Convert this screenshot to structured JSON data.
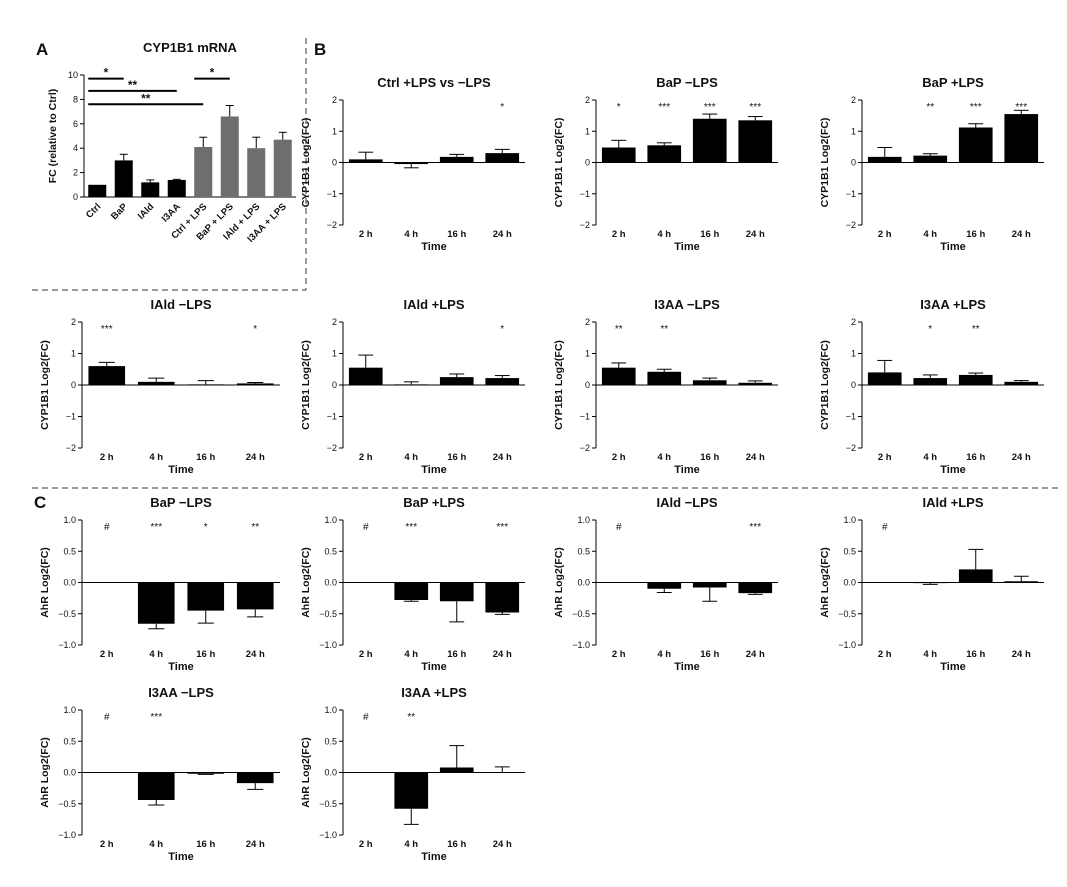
{
  "panel_labels": {
    "A": "A",
    "B": "B",
    "C": "C"
  },
  "chart_data": [
    {
      "id": "A",
      "type": "bar",
      "title": "CYP1B1 mRNA",
      "ylabel": "FC (relative to Ctrl)",
      "xlabel": "",
      "ylim": [
        0,
        10
      ],
      "yticks": [
        0,
        2,
        4,
        6,
        8,
        10
      ],
      "categories": [
        "Ctrl",
        "BaP",
        "IAld",
        "I3AA",
        "Ctrl + LPS",
        "BaP + LPS",
        "IAld + LPS",
        "I3AA + LPS"
      ],
      "values": [
        1.0,
        3.0,
        1.2,
        1.4,
        4.1,
        6.6,
        4.0,
        4.7
      ],
      "errors": [
        0.0,
        0.5,
        0.2,
        0.05,
        0.8,
        0.9,
        0.9,
        0.6
      ],
      "colors": [
        "#000000",
        "#000000",
        "#000000",
        "#000000",
        "#6e6e6e",
        "#6e6e6e",
        "#6e6e6e",
        "#6e6e6e"
      ],
      "brackets": [
        {
          "from": 0,
          "to": 1,
          "y": 9.7,
          "label": "*"
        },
        {
          "from": 0,
          "to": 3,
          "y": 8.7,
          "label": "**"
        },
        {
          "from": 0,
          "to": 4,
          "y": 7.6,
          "label": "**"
        },
        {
          "from": 4,
          "to": 5,
          "y": 9.7,
          "label": "*"
        }
      ]
    },
    {
      "id": "B1",
      "type": "bar",
      "title": "Ctrl +LPS vs −LPS",
      "ylabel": "CYP1B1 Log2(FC)",
      "xlabel": "Time",
      "ylim": [
        -2,
        2
      ],
      "yticks": [
        -2,
        -1,
        0,
        1,
        2
      ],
      "ytick_labels": [
        "−2",
        "−1",
        "0",
        "1",
        "2"
      ],
      "categories": [
        "2 h",
        "4 h",
        "16 h",
        "24 h"
      ],
      "values": [
        0.1,
        -0.05,
        0.18,
        0.3
      ],
      "errors": [
        0.23,
        0.12,
        0.08,
        0.12
      ],
      "annotations": [
        "",
        "",
        "",
        "*"
      ]
    },
    {
      "id": "B2",
      "type": "bar",
      "title": "BaP −LPS",
      "ylabel": "CYP1B1 Log2(FC)",
      "xlabel": "Time",
      "ylim": [
        -2,
        2
      ],
      "yticks": [
        -2,
        -1,
        0,
        1,
        2
      ],
      "ytick_labels": [
        "−2",
        "−1",
        "0",
        "1",
        "2"
      ],
      "categories": [
        "2 h",
        "4 h",
        "16 h",
        "24 h"
      ],
      "values": [
        0.48,
        0.55,
        1.4,
        1.35
      ],
      "errors": [
        0.23,
        0.08,
        0.15,
        0.12
      ],
      "annotations": [
        "*",
        "***",
        "***",
        "***"
      ]
    },
    {
      "id": "B3",
      "type": "bar",
      "title": "BaP +LPS",
      "ylabel": "CYP1B1 Log2(FC)",
      "xlabel": "Time",
      "ylim": [
        -2,
        2
      ],
      "yticks": [
        -2,
        -1,
        0,
        1,
        2
      ],
      "ytick_labels": [
        "−2",
        "−1",
        "0",
        "1",
        "2"
      ],
      "categories": [
        "2 h",
        "4 h",
        "16 h",
        "24 h"
      ],
      "values": [
        0.18,
        0.22,
        1.12,
        1.55
      ],
      "errors": [
        0.3,
        0.06,
        0.12,
        0.12
      ],
      "annotations": [
        "",
        "**",
        "***",
        "***"
      ]
    },
    {
      "id": "B4",
      "type": "bar",
      "title": "IAld −LPS",
      "ylabel": "CYP1B1 Log2(FC)",
      "xlabel": "Time",
      "ylim": [
        -2,
        2
      ],
      "yticks": [
        -2,
        -1,
        0,
        1,
        2
      ],
      "ytick_labels": [
        "−2",
        "−1",
        "0",
        "1",
        "2"
      ],
      "categories": [
        "2 h",
        "4 h",
        "16 h",
        "24 h"
      ],
      "values": [
        0.6,
        0.1,
        0.02,
        0.05
      ],
      "errors": [
        0.12,
        0.12,
        0.12,
        0.03
      ],
      "annotations": [
        "***",
        "",
        "",
        "*"
      ]
    },
    {
      "id": "B5",
      "type": "bar",
      "title": "IAld +LPS",
      "ylabel": "CYP1B1 Log2(FC)",
      "xlabel": "Time",
      "ylim": [
        -2,
        2
      ],
      "yticks": [
        -2,
        -1,
        0,
        1,
        2
      ],
      "ytick_labels": [
        "−2",
        "−1",
        "0",
        "1",
        "2"
      ],
      "categories": [
        "2 h",
        "4 h",
        "16 h",
        "24 h"
      ],
      "values": [
        0.55,
        0.02,
        0.25,
        0.22
      ],
      "errors": [
        0.4,
        0.08,
        0.1,
        0.08
      ],
      "annotations": [
        "",
        "",
        "",
        "*"
      ]
    },
    {
      "id": "B6",
      "type": "bar",
      "title": "I3AA −LPS",
      "ylabel": "CYP1B1 Log2(FC)",
      "xlabel": "Time",
      "ylim": [
        -2,
        2
      ],
      "yticks": [
        -2,
        -1,
        0,
        1,
        2
      ],
      "ytick_labels": [
        "−2",
        "−1",
        "0",
        "1",
        "2"
      ],
      "categories": [
        "2 h",
        "4 h",
        "16 h",
        "24 h"
      ],
      "values": [
        0.55,
        0.42,
        0.15,
        0.07
      ],
      "errors": [
        0.15,
        0.08,
        0.07,
        0.06
      ],
      "annotations": [
        "**",
        "**",
        "",
        ""
      ]
    },
    {
      "id": "B7",
      "type": "bar",
      "title": "I3AA +LPS",
      "ylabel": "CYP1B1 Log2(FC)",
      "xlabel": "Time",
      "ylim": [
        -2,
        2
      ],
      "yticks": [
        -2,
        -1,
        0,
        1,
        2
      ],
      "ytick_labels": [
        "−2",
        "−1",
        "0",
        "1",
        "2"
      ],
      "categories": [
        "2 h",
        "4 h",
        "16 h",
        "24 h"
      ],
      "values": [
        0.4,
        0.22,
        0.32,
        0.1
      ],
      "errors": [
        0.38,
        0.1,
        0.06,
        0.04
      ],
      "annotations": [
        "",
        "*",
        "**",
        ""
      ]
    },
    {
      "id": "C1",
      "type": "bar",
      "title": "BaP −LPS",
      "ylabel": "AhR Log2(FC)",
      "xlabel": "Time",
      "ylim": [
        -1,
        1
      ],
      "yticks": [
        -1,
        -0.5,
        0,
        0.5,
        1
      ],
      "ytick_labels": [
        "−1.0",
        "−0.5",
        "0.0",
        "0.5",
        "1.0"
      ],
      "categories": [
        "2 h",
        "4 h",
        "16 h",
        "24 h"
      ],
      "values": [
        0,
        -0.66,
        -0.45,
        -0.43
      ],
      "errors": [
        0,
        0.08,
        0.2,
        0.12
      ],
      "annotations": [
        "#",
        "***",
        "*",
        "**"
      ]
    },
    {
      "id": "C2",
      "type": "bar",
      "title": "BaP +LPS",
      "ylabel": "AhR Log2(FC)",
      "xlabel": "Time",
      "ylim": [
        -1,
        1
      ],
      "yticks": [
        -1,
        -0.5,
        0,
        0.5,
        1
      ],
      "ytick_labels": [
        "−1.0",
        "−0.5",
        "0.0",
        "0.5",
        "1.0"
      ],
      "categories": [
        "2 h",
        "4 h",
        "16 h",
        "24 h"
      ],
      "values": [
        0,
        -0.28,
        -0.3,
        -0.48
      ],
      "errors": [
        0,
        0.02,
        0.33,
        0.03
      ],
      "annotations": [
        "#",
        "***",
        "",
        "***"
      ]
    },
    {
      "id": "C3",
      "type": "bar",
      "title": "IAld −LPS",
      "ylabel": "AhR Log2(FC)",
      "xlabel": "Time",
      "ylim": [
        -1,
        1
      ],
      "yticks": [
        -1,
        -0.5,
        0,
        0.5,
        1
      ],
      "ytick_labels": [
        "−1.0",
        "−0.5",
        "0.0",
        "0.5",
        "1.0"
      ],
      "categories": [
        "2 h",
        "4 h",
        "16 h",
        "24 h"
      ],
      "values": [
        0,
        -0.1,
        -0.08,
        -0.17
      ],
      "errors": [
        0,
        0.06,
        0.22,
        0.02
      ],
      "annotations": [
        "#",
        "",
        "",
        "***"
      ]
    },
    {
      "id": "C4",
      "type": "bar",
      "title": "IAld +LPS",
      "ylabel": "AhR Log2(FC)",
      "xlabel": "Time",
      "ylim": [
        -1,
        1
      ],
      "yticks": [
        -1,
        -0.5,
        0,
        0.5,
        1
      ],
      "ytick_labels": [
        "−1.0",
        "−0.5",
        "0.0",
        "0.5",
        "1.0"
      ],
      "categories": [
        "2 h",
        "4 h",
        "16 h",
        "24 h"
      ],
      "values": [
        0,
        -0.01,
        0.21,
        0.02
      ],
      "errors": [
        0,
        0.02,
        0.32,
        0.08
      ],
      "annotations": [
        "#",
        "",
        "",
        ""
      ]
    },
    {
      "id": "C5",
      "type": "bar",
      "title": "I3AA −LPS",
      "ylabel": "AhR Log2(FC)",
      "xlabel": "Time",
      "ylim": [
        -1,
        1
      ],
      "yticks": [
        -1,
        -0.5,
        0,
        0.5,
        1
      ],
      "ytick_labels": [
        "−1.0",
        "−0.5",
        "0.0",
        "0.5",
        "1.0"
      ],
      "categories": [
        "2 h",
        "4 h",
        "16 h",
        "24 h"
      ],
      "values": [
        0,
        -0.44,
        -0.02,
        -0.17
      ],
      "errors": [
        0,
        0.08,
        0.01,
        0.1
      ],
      "annotations": [
        "#",
        "***",
        "",
        ""
      ]
    },
    {
      "id": "C6",
      "type": "bar",
      "title": "I3AA +LPS",
      "ylabel": "AhR Log2(FC)",
      "xlabel": "Time",
      "ylim": [
        -1,
        1
      ],
      "yticks": [
        -1,
        -0.5,
        0,
        0.5,
        1
      ],
      "ytick_labels": [
        "−1.0",
        "−0.5",
        "0.0",
        "0.5",
        "1.0"
      ],
      "categories": [
        "2 h",
        "4 h",
        "16 h",
        "24 h"
      ],
      "values": [
        0,
        -0.58,
        0.08,
        0.0
      ],
      "errors": [
        0,
        0.25,
        0.35,
        0.09
      ],
      "annotations": [
        "#",
        "**",
        "",
        ""
      ]
    }
  ]
}
